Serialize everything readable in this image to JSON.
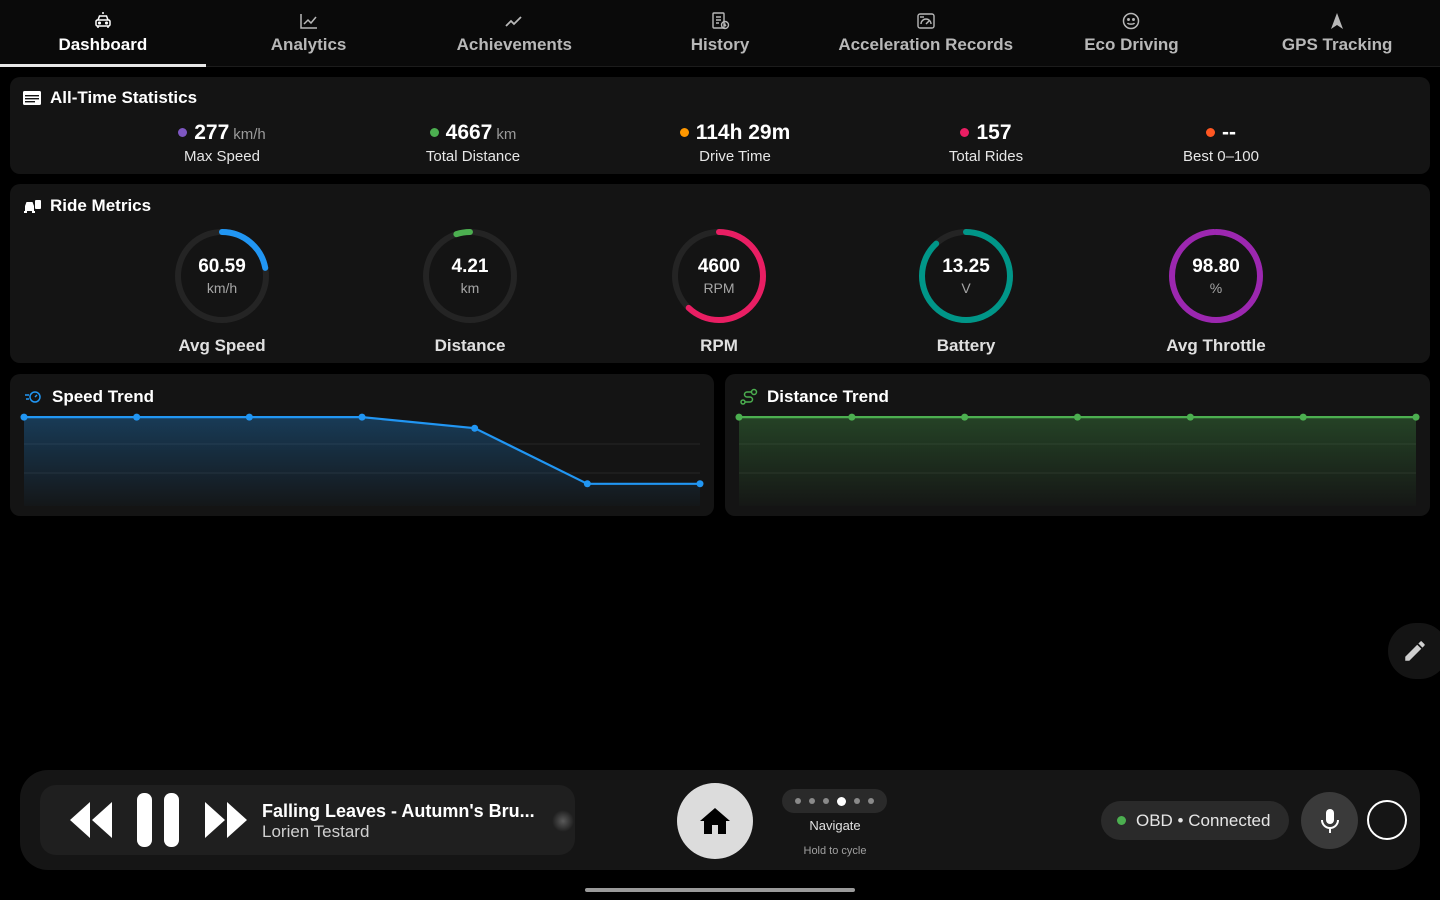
{
  "tabs": [
    {
      "label": "Dashboard",
      "icon": "car-icon",
      "active": true
    },
    {
      "label": "Analytics",
      "icon": "chart-icon",
      "active": false
    },
    {
      "label": "Achievements",
      "icon": "trend-icon",
      "active": false
    },
    {
      "label": "History",
      "icon": "history-icon",
      "active": false
    },
    {
      "label": "Acceleration Records",
      "icon": "speedometer-icon",
      "active": false
    },
    {
      "label": "Eco Driving",
      "icon": "eco-icon",
      "active": false
    },
    {
      "label": "GPS Tracking",
      "icon": "navigation-icon",
      "active": false
    }
  ],
  "all_time": {
    "title": "All-Time Statistics",
    "stats": [
      {
        "value": "277",
        "unit": "km/h",
        "label": "Max Speed",
        "color": "#7e57c2"
      },
      {
        "value": "4667",
        "unit": "km",
        "label": "Total Distance",
        "color": "#4caf50"
      },
      {
        "value": "114h 29m",
        "unit": "",
        "label": "Drive Time",
        "color": "#ff9800"
      },
      {
        "value": "157",
        "unit": "",
        "label": "Total Rides",
        "color": "#e91e63"
      },
      {
        "value": "--",
        "unit": "",
        "label": "Best 0–100",
        "color": "#ff5722"
      }
    ]
  },
  "ride_metrics": {
    "title": "Ride Metrics",
    "gauges": [
      {
        "value": "60.59",
        "unit": "km/h",
        "label": "Avg Speed",
        "color": "#2196f3",
        "fraction": 0.22
      },
      {
        "value": "4.21",
        "unit": "km",
        "label": "Distance",
        "color": "#4caf50",
        "fraction": 0.05
      },
      {
        "value": "4600",
        "unit": "RPM",
        "label": "RPM",
        "color": "#e91e63",
        "fraction": 0.62
      },
      {
        "value": "13.25",
        "unit": "V",
        "label": "Battery",
        "color": "#009688",
        "fraction": 0.88
      },
      {
        "value": "98.80",
        "unit": "%",
        "label": "Avg Throttle",
        "color": "#9c27b0",
        "fraction": 0.99
      }
    ]
  },
  "speed_trend": {
    "title": "Speed Trend",
    "color": "#2196f3",
    "chart_data": {
      "type": "line",
      "x": [
        1,
        2,
        3,
        4,
        5,
        6,
        7
      ],
      "values": [
        100,
        100,
        100,
        100,
        95,
        70,
        70
      ],
      "ylim": [
        60,
        105
      ]
    }
  },
  "distance_trend": {
    "title": "Distance Trend",
    "color": "#4caf50",
    "chart_data": {
      "type": "line",
      "x": [
        1,
        2,
        3,
        4,
        5,
        6,
        7
      ],
      "values": [
        100,
        100,
        100,
        100,
        100,
        100,
        100
      ],
      "ylim": [
        60,
        105
      ]
    }
  },
  "media": {
    "title": "Falling Leaves - Autumn's Bru...",
    "artist": "Lorien Testard"
  },
  "nav": {
    "label": "Navigate",
    "hint": "Hold to cycle",
    "page_count": 6,
    "active_page": 4
  },
  "obd": {
    "status": "OBD • Connected"
  }
}
